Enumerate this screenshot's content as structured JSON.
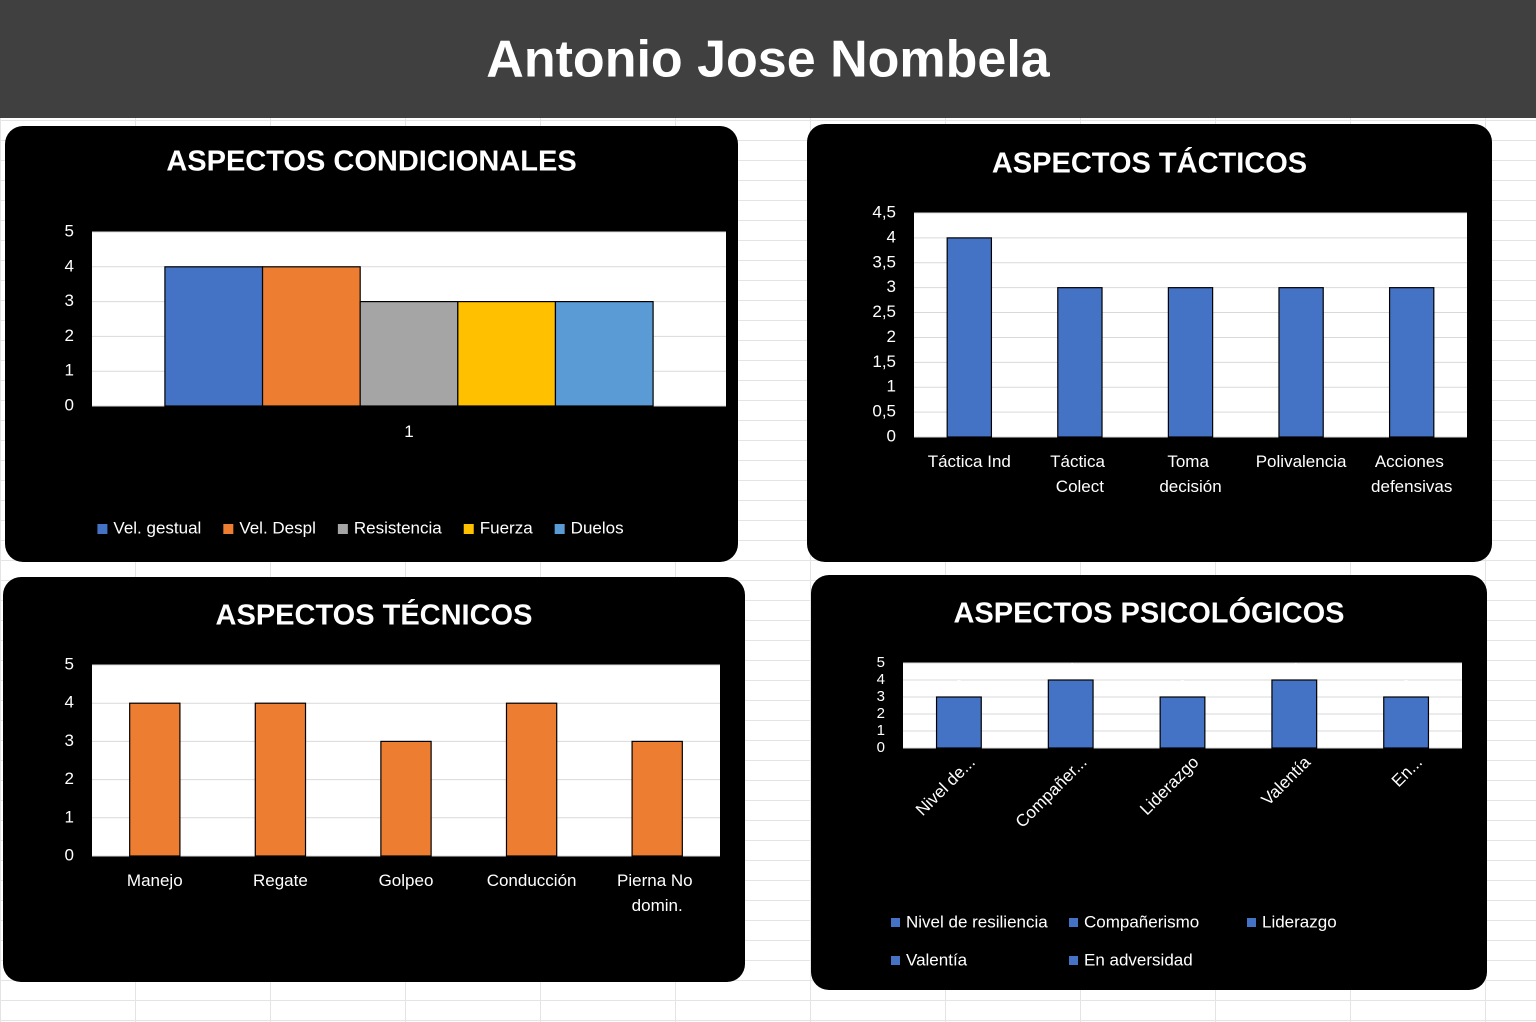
{
  "title": "Antonio Jose Nombela",
  "chart_data": [
    {
      "type": "bar",
      "title": "ASPECTOS CONDICIONALES",
      "categories": [
        "1"
      ],
      "series": [
        {
          "name": "Vel. gestual",
          "color": "#4472c4",
          "values": [
            4
          ]
        },
        {
          "name": "Vel. Despl",
          "color": "#ed7d31",
          "values": [
            4
          ]
        },
        {
          "name": "Resistencia",
          "color": "#a5a5a5",
          "values": [
            3
          ]
        },
        {
          "name": "Fuerza",
          "color": "#ffc000",
          "values": [
            3
          ]
        },
        {
          "name": "Duelos",
          "color": "#5b9bd5",
          "values": [
            3
          ]
        }
      ],
      "ylim": [
        0,
        5
      ],
      "yticks": [
        0,
        1,
        2,
        3,
        4,
        5
      ],
      "grid": true,
      "legend": "bottom"
    },
    {
      "type": "bar",
      "title": "ASPECTOS TÁCTICOS",
      "categories": [
        "Táctica Ind",
        "Táctica Colect",
        "Toma decisión",
        "Polivalencia",
        "Acciones defensivas"
      ],
      "values": [
        4,
        3,
        3,
        3,
        3
      ],
      "color": "#4472c4",
      "ylim": [
        0,
        4.5
      ],
      "yticks": [
        0,
        {
          "value": 0.5,
          "label": "0,5"
        },
        1,
        {
          "value": 1.5,
          "label": "1,5"
        },
        2,
        {
          "value": 2.5,
          "label": "2,5"
        },
        3,
        {
          "value": 3.5,
          "label": "3,5"
        },
        4,
        {
          "value": 4.5,
          "label": "4,5"
        }
      ],
      "grid": true
    },
    {
      "type": "bar",
      "title": "ASPECTOS TÉCNICOS",
      "categories": [
        "Manejo",
        "Regate",
        "Golpeo",
        "Conducción",
        "Pierna No domin."
      ],
      "values": [
        4,
        4,
        3,
        4,
        3
      ],
      "color": "#ed7d31",
      "ylim": [
        0,
        5
      ],
      "yticks": [
        0,
        1,
        2,
        3,
        4,
        5
      ],
      "grid": true
    },
    {
      "type": "bar",
      "title": "ASPECTOS PSICOLÓGICOS",
      "categories": [
        "Nivel de...",
        "Compañer...",
        "Liderazgo",
        "Valentía",
        "En..."
      ],
      "legend_entries": [
        "Nivel de resiliencia",
        "Compañerismo",
        "Liderazgo",
        "Valentía",
        "En adversidad"
      ],
      "values": [
        3,
        4,
        3,
        4,
        3
      ],
      "color": "#4472c4",
      "data_labels": true,
      "ylim": [
        0,
        5
      ],
      "yticks": [
        0,
        1,
        2,
        3,
        4,
        5
      ],
      "grid": true,
      "legend": "bottom",
      "rotated_labels": true
    }
  ]
}
